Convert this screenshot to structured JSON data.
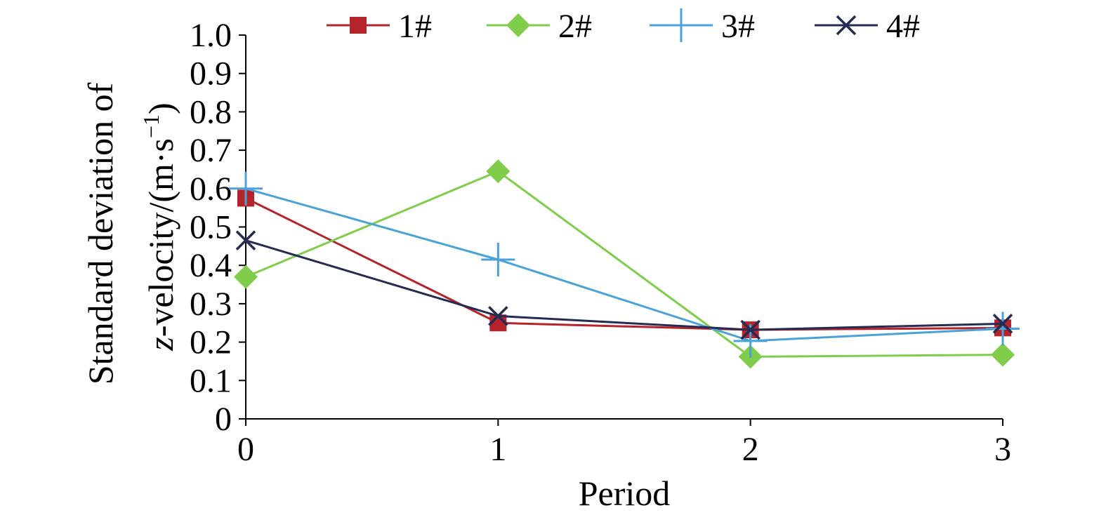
{
  "chart_data": {
    "type": "line",
    "title": "",
    "xlabel": "Period",
    "ylabel_line1": "Standard deviation of",
    "ylabel_line2_italic": "z",
    "ylabel_line2_rest": "-velocity/(m·s",
    "ylabel_line2_sup": "−1",
    "ylabel_line2_close": ")",
    "x": [
      0,
      1,
      2,
      3
    ],
    "x_tick_labels": [
      "0",
      "1",
      "2",
      "3"
    ],
    "xlim": [
      0,
      3
    ],
    "ylim": [
      0,
      1.0
    ],
    "y_tick_values": [
      0,
      0.1,
      0.2,
      0.3,
      0.4,
      0.5,
      0.6,
      0.7,
      0.8,
      0.9,
      1.0
    ],
    "y_tick_labels": [
      "0",
      "0.1",
      "0.2",
      "0.3",
      "0.4",
      "0.5",
      "0.6",
      "0.7",
      "0.8",
      "0.9",
      "1.0"
    ],
    "grid": false,
    "legend_position": "top",
    "series": [
      {
        "name": "1#",
        "marker": "square",
        "color": "#b5232b",
        "values": [
          0.575,
          0.25,
          0.232,
          0.237
        ]
      },
      {
        "name": "2#",
        "marker": "diamond",
        "color": "#7fcd4b",
        "values": [
          0.37,
          0.645,
          0.162,
          0.167
        ]
      },
      {
        "name": "3#",
        "marker": "plus",
        "color": "#4aa3d8",
        "values": [
          0.6,
          0.415,
          0.203,
          0.235
        ]
      },
      {
        "name": "4#",
        "marker": "x",
        "color": "#252b52",
        "values": [
          0.465,
          0.268,
          0.232,
          0.248
        ]
      }
    ]
  }
}
